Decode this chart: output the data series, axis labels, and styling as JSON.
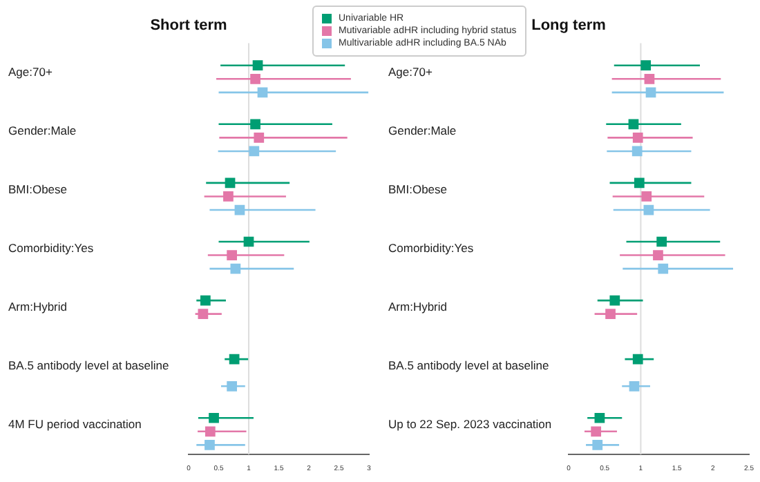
{
  "chart_data": [
    {
      "type": "scatter",
      "title": "Short term",
      "orientation": "horizontal",
      "marker": "square",
      "grid": false,
      "legend": "top",
      "categories": [
        "Age:70+",
        "Gender:Male",
        "BMI:Obese",
        "Comorbidity:Yes",
        "Arm:Hybrid",
        "BA.5 antibody level at baseline",
        "4M FU period vaccination"
      ],
      "xlim": [
        0,
        3
      ],
      "xticks": [
        0,
        0.5,
        1,
        1.5,
        2,
        2.5,
        3
      ],
      "ref_lines": [
        {
          "axis": "x",
          "value": 1,
          "color": "#dddddd"
        }
      ],
      "series": [
        {
          "name": "Univariable HR",
          "color": "#009e73",
          "values": [
            1.15,
            1.11,
            0.69,
            1.0,
            0.28,
            0.76,
            0.42
          ],
          "errors": [
            [
              0.53,
              2.6
            ],
            [
              0.5,
              2.39
            ],
            [
              0.29,
              1.68
            ],
            [
              0.5,
              2.01
            ],
            [
              0.13,
              0.62
            ],
            [
              0.6,
              0.99
            ],
            [
              0.16,
              1.08
            ]
          ]
        },
        {
          "name": "Mutivariable adHR including hybrid status",
          "color": "#e377a8",
          "values": [
            1.11,
            1.17,
            0.66,
            0.72,
            0.24,
            null,
            0.36
          ],
          "errors": [
            [
              0.46,
              2.7
            ],
            [
              0.51,
              2.64
            ],
            [
              0.26,
              1.62
            ],
            [
              0.32,
              1.59
            ],
            [
              0.11,
              0.55
            ],
            null,
            [
              0.15,
              0.96
            ]
          ]
        },
        {
          "name": "Multivariable adHR including BA.5 NAb",
          "color": "#86c5e8",
          "values": [
            1.23,
            1.09,
            0.85,
            0.78,
            null,
            0.72,
            0.35
          ],
          "errors": [
            [
              0.5,
              2.99
            ],
            [
              0.49,
              2.45
            ],
            [
              0.35,
              2.11
            ],
            [
              0.35,
              1.75
            ],
            null,
            [
              0.54,
              0.94
            ],
            [
              0.13,
              0.94
            ]
          ]
        }
      ]
    },
    {
      "type": "scatter",
      "title": "Long term",
      "orientation": "horizontal",
      "marker": "square",
      "grid": false,
      "categories": [
        "Age:70+",
        "Gender:Male",
        "BMI:Obese",
        "Comorbidity:Yes",
        "Arm:Hybrid",
        "BA.5 antibody level at baseline",
        "Up to 22 Sep. 2023 vaccination"
      ],
      "xlim": [
        0,
        2.5
      ],
      "xticks": [
        0,
        0.5,
        1,
        1.5,
        2,
        2.5
      ],
      "ref_lines": [
        {
          "axis": "x",
          "value": 1,
          "color": "#dddddd"
        }
      ],
      "series": [
        {
          "color": "#009e73",
          "values": [
            1.07,
            0.9,
            0.98,
            1.29,
            0.64,
            0.96,
            0.43
          ],
          "errors": [
            [
              0.63,
              1.82
            ],
            [
              0.52,
              1.56
            ],
            [
              0.57,
              1.7
            ],
            [
              0.8,
              2.1
            ],
            [
              0.4,
              1.03
            ],
            [
              0.78,
              1.18
            ],
            [
              0.26,
              0.74
            ]
          ]
        },
        {
          "color": "#e377a8",
          "values": [
            1.12,
            0.96,
            1.08,
            1.24,
            0.58,
            null,
            0.38
          ],
          "errors": [
            [
              0.6,
              2.11
            ],
            [
              0.54,
              1.72
            ],
            [
              0.61,
              1.88
            ],
            [
              0.71,
              2.17
            ],
            [
              0.36,
              0.95
            ],
            null,
            [
              0.22,
              0.67
            ]
          ]
        },
        {
          "color": "#86c5e8",
          "values": [
            1.14,
            0.95,
            1.11,
            1.31,
            null,
            0.91,
            0.4
          ],
          "errors": [
            [
              0.6,
              2.15
            ],
            [
              0.53,
              1.7
            ],
            [
              0.62,
              1.96
            ],
            [
              0.75,
              2.28
            ],
            null,
            [
              0.74,
              1.13
            ],
            [
              0.24,
              0.7
            ]
          ]
        }
      ]
    }
  ]
}
